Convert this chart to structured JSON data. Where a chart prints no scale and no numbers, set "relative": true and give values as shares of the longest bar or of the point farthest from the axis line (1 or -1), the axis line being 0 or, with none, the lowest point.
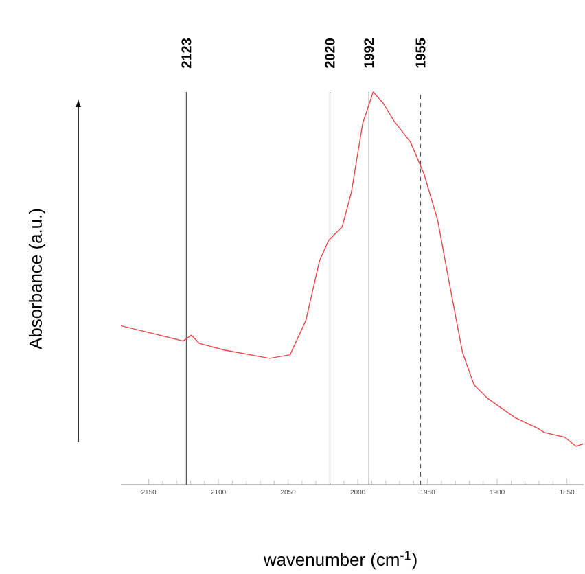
{
  "chart_data": {
    "type": "line",
    "xlabel": "wavenumber (cm$^{-1}$)",
    "ylabel": "Absorbance (a.u.)",
    "relative": true,
    "xlim": [
      2170,
      1838
    ],
    "xticks": [
      2150,
      2100,
      2050,
      2000,
      1950,
      1900,
      1850
    ],
    "series": [
      {
        "color": "#e8474a",
        "x": [
          2170,
          2144.8,
          2125.3,
          2119.4,
          2113.8,
          2095.9,
          2063.3,
          2048.6,
          2037.3,
          2027.5,
          2021.0,
          2011.2,
          2004.6,
          1996.5,
          1989.0,
          1981.9,
          1973.8,
          1962.3,
          1952.5,
          1942.8,
          1933.0,
          1924.9,
          1916.7,
          1906.9,
          1887.3,
          1871.1,
          1866.2,
          1851.6,
          1843.4,
          1838.5
        ],
        "values": [
          0.405,
          0.383,
          0.366,
          0.381,
          0.36,
          0.343,
          0.322,
          0.331,
          0.418,
          0.57,
          0.622,
          0.657,
          0.745,
          0.92,
          1.0,
          0.972,
          0.925,
          0.873,
          0.791,
          0.675,
          0.488,
          0.337,
          0.255,
          0.22,
          0.171,
          0.144,
          0.133,
          0.121,
          0.098,
          0.104
        ]
      }
    ],
    "ref_lines": [
      {
        "axis": "x",
        "value": 2123,
        "label": "2123",
        "color": "#555555",
        "line_style": "solid"
      },
      {
        "axis": "x",
        "value": 2020,
        "label": "2020",
        "color": "#555555",
        "line_style": "solid"
      },
      {
        "axis": "x",
        "value": 1992,
        "label": "1992",
        "color": "#555555",
        "line_style": "solid"
      },
      {
        "axis": "x",
        "value": 1955,
        "label": "1955",
        "color": "#555555",
        "line_style": "dashed"
      }
    ],
    "grid": false,
    "marker": "none",
    "line_style": "solid"
  }
}
